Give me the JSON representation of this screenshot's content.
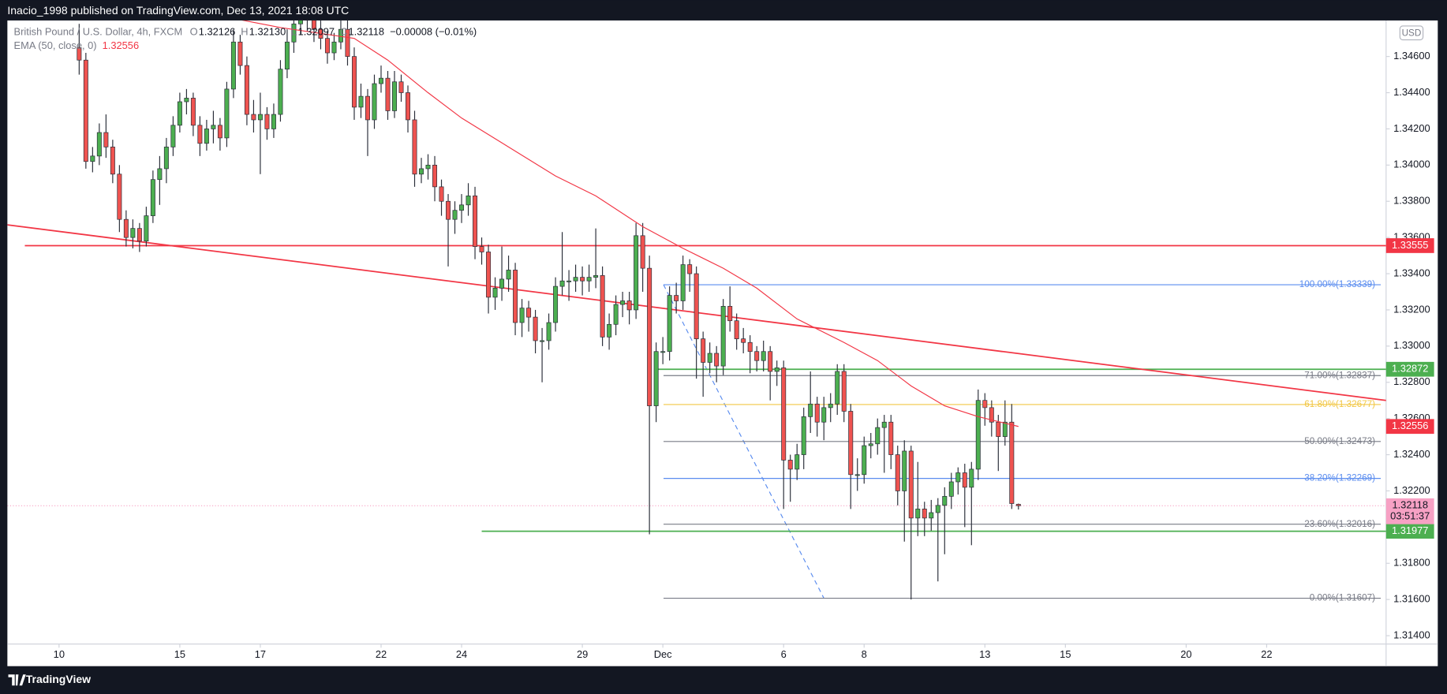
{
  "header": {
    "byline": "Inacio_1998 published on TradingView.com, Dec 13, 2021 18:08 UTC",
    "brand": "TradingView",
    "currency": "USD"
  },
  "chart_data": {
    "type": "candlestick",
    "up_color": "#4caf50",
    "down_color": "#ef5350",
    "legend": {
      "symbol": "British Pound / U.S. Dollar, 4h, FXCM",
      "items": [
        {
          "key": "O",
          "label": "1.32126"
        },
        {
          "key": "H",
          "label": "1.32130"
        },
        {
          "key": "L",
          "label": "1.32097"
        },
        {
          "key": "C",
          "label": "1.32118"
        }
      ],
      "change": "−0.00008 (−0.01%)"
    },
    "xlim": [
      -7.7,
      197.8
    ],
    "xticks": [
      {
        "value": 0,
        "label": "10"
      },
      {
        "value": 18,
        "label": "15"
      },
      {
        "value": 30,
        "label": "17"
      },
      {
        "value": 48,
        "label": "22"
      },
      {
        "value": 60,
        "label": "24"
      },
      {
        "value": 78,
        "label": "29"
      },
      {
        "value": 90,
        "label": "Dec"
      },
      {
        "value": 108,
        "label": "6"
      },
      {
        "value": 120,
        "label": "8"
      },
      {
        "value": 138,
        "label": "13"
      },
      {
        "value": 150,
        "label": "15"
      },
      {
        "value": 168,
        "label": "20"
      },
      {
        "value": 180,
        "label": "22"
      }
    ],
    "ylim": [
      1.31354,
      1.34799
    ],
    "yticks": [
      {
        "value": 1.314,
        "label": "1.31400"
      },
      {
        "value": 1.316,
        "label": "1.31600"
      },
      {
        "value": 1.318,
        "label": "1.31800"
      },
      {
        "value": 1.32,
        "label": "1.32000"
      },
      {
        "value": 1.322,
        "label": "1.32200"
      },
      {
        "value": 1.324,
        "label": "1.32400"
      },
      {
        "value": 1.326,
        "label": "1.32600"
      },
      {
        "value": 1.328,
        "label": "1.32800"
      },
      {
        "value": 1.33,
        "label": "1.33000"
      },
      {
        "value": 1.332,
        "label": "1.33200"
      },
      {
        "value": 1.334,
        "label": "1.33400"
      },
      {
        "value": 1.336,
        "label": "1.33600"
      },
      {
        "value": 1.338,
        "label": "1.33800"
      },
      {
        "value": 1.34,
        "label": "1.34000"
      },
      {
        "value": 1.342,
        "label": "1.34200"
      },
      {
        "value": 1.344,
        "label": "1.34400"
      },
      {
        "value": 1.346,
        "label": "1.34600"
      }
    ],
    "x": [
      3,
      4,
      5,
      6,
      7,
      8,
      9,
      10,
      11,
      12,
      13,
      14,
      15,
      16,
      17,
      18,
      19,
      20,
      21,
      22,
      23,
      24,
      25,
      26,
      27,
      28,
      29,
      30,
      31,
      32,
      33,
      34,
      35,
      36,
      37,
      38,
      39,
      40,
      41,
      42,
      43,
      44,
      45,
      46,
      47,
      48,
      49,
      50,
      51,
      52,
      53,
      54,
      55,
      56,
      57,
      58,
      59,
      60,
      61,
      62,
      63,
      64,
      65,
      66,
      67,
      68,
      69,
      70,
      71,
      72,
      73,
      74,
      75,
      76,
      77,
      78,
      79,
      80,
      81,
      82,
      83,
      84,
      85,
      86,
      87,
      88,
      89,
      90,
      91,
      92,
      93,
      94,
      95,
      96,
      97,
      98,
      99,
      100,
      101,
      102,
      103,
      104,
      105,
      106,
      107,
      108,
      109,
      110,
      111,
      112,
      113,
      114,
      115,
      116,
      117,
      118,
      119,
      120,
      121,
      122,
      123,
      124,
      125,
      126,
      127,
      128,
      129,
      130,
      131,
      132,
      133,
      134,
      135,
      136,
      137,
      138,
      139,
      140,
      141,
      142,
      143
    ],
    "ohlc": [
      [
        1.3465,
        1.3478,
        1.345,
        1.3458
      ],
      [
        1.3458,
        1.3462,
        1.3398,
        1.3402
      ],
      [
        1.3402,
        1.341,
        1.3396,
        1.3405
      ],
      [
        1.3405,
        1.3423,
        1.34,
        1.3418
      ],
      [
        1.3418,
        1.3428,
        1.3404,
        1.341
      ],
      [
        1.341,
        1.3414,
        1.339,
        1.3395
      ],
      [
        1.3395,
        1.34,
        1.3363,
        1.337
      ],
      [
        1.337,
        1.3375,
        1.3355,
        1.336
      ],
      [
        1.336,
        1.337,
        1.3354,
        1.3365
      ],
      [
        1.3365,
        1.3368,
        1.3352,
        1.3358
      ],
      [
        1.3358,
        1.3377,
        1.3355,
        1.3372
      ],
      [
        1.3372,
        1.3397,
        1.3368,
        1.3392
      ],
      [
        1.3392,
        1.3405,
        1.3378,
        1.3398
      ],
      [
        1.3398,
        1.3415,
        1.339,
        1.341
      ],
      [
        1.341,
        1.3427,
        1.3405,
        1.3422
      ],
      [
        1.3422,
        1.344,
        1.3418,
        1.3435
      ],
      [
        1.3435,
        1.3442,
        1.3428,
        1.3437
      ],
      [
        1.3437,
        1.344,
        1.3416,
        1.3422
      ],
      [
        1.3422,
        1.3427,
        1.3405,
        1.3412
      ],
      [
        1.3412,
        1.3425,
        1.3408,
        1.342
      ],
      [
        1.342,
        1.343,
        1.3412,
        1.3422
      ],
      [
        1.3422,
        1.3426,
        1.3408,
        1.3415
      ],
      [
        1.3415,
        1.3446,
        1.341,
        1.3442
      ],
      [
        1.3442,
        1.3475,
        1.3437,
        1.3468
      ],
      [
        1.3468,
        1.3472,
        1.345,
        1.3455
      ],
      [
        1.3455,
        1.346,
        1.3422,
        1.3428
      ],
      [
        1.3428,
        1.3436,
        1.3418,
        1.3425
      ],
      [
        1.3425,
        1.344,
        1.3395,
        1.3428
      ],
      [
        1.3428,
        1.3432,
        1.3414,
        1.342
      ],
      [
        1.342,
        1.3434,
        1.3415,
        1.3428
      ],
      [
        1.3428,
        1.3458,
        1.3424,
        1.3453
      ],
      [
        1.3453,
        1.3475,
        1.3448,
        1.3468
      ],
      [
        1.3468,
        1.3485,
        1.3462,
        1.3478
      ],
      [
        1.3478,
        1.349,
        1.3472,
        1.3482
      ],
      [
        1.3482,
        1.3488,
        1.3474,
        1.348
      ],
      [
        1.348,
        1.3485,
        1.3468,
        1.3475
      ],
      [
        1.3475,
        1.348,
        1.3464,
        1.347
      ],
      [
        1.347,
        1.3474,
        1.3456,
        1.3462
      ],
      [
        1.3462,
        1.3473,
        1.3458,
        1.3468
      ],
      [
        1.3468,
        1.348,
        1.3464,
        1.3475
      ],
      [
        1.3475,
        1.348,
        1.3455,
        1.346
      ],
      [
        1.346,
        1.3465,
        1.3425,
        1.3432
      ],
      [
        1.3432,
        1.3445,
        1.3426,
        1.3438
      ],
      [
        1.3438,
        1.3442,
        1.3405,
        1.3425
      ],
      [
        1.3425,
        1.345,
        1.342,
        1.3445
      ],
      [
        1.3445,
        1.3455,
        1.344,
        1.3448
      ],
      [
        1.3448,
        1.3452,
        1.3425,
        1.343
      ],
      [
        1.343,
        1.3452,
        1.3426,
        1.3446
      ],
      [
        1.3446,
        1.345,
        1.3435,
        1.344
      ],
      [
        1.344,
        1.3444,
        1.3418,
        1.3425
      ],
      [
        1.3425,
        1.343,
        1.3388,
        1.3395
      ],
      [
        1.3395,
        1.3404,
        1.339,
        1.3398
      ],
      [
        1.3398,
        1.3406,
        1.3392,
        1.34
      ],
      [
        1.34,
        1.3405,
        1.338,
        1.3388
      ],
      [
        1.3388,
        1.3392,
        1.3372,
        1.338
      ],
      [
        1.338,
        1.3384,
        1.3344,
        1.337
      ],
      [
        1.337,
        1.338,
        1.3362,
        1.3375
      ],
      [
        1.3375,
        1.3384,
        1.3368,
        1.3378
      ],
      [
        1.3378,
        1.339,
        1.3372,
        1.3383
      ],
      [
        1.3383,
        1.3388,
        1.3348,
        1.3355
      ],
      [
        1.3355,
        1.336,
        1.3345,
        1.3352
      ],
      [
        1.3352,
        1.3356,
        1.3318,
        1.3327
      ],
      [
        1.3327,
        1.3338,
        1.332,
        1.3332
      ],
      [
        1.3332,
        1.3355,
        1.3325,
        1.3337
      ],
      [
        1.3337,
        1.335,
        1.333,
        1.3342
      ],
      [
        1.3342,
        1.3346,
        1.3306,
        1.3313
      ],
      [
        1.3313,
        1.3326,
        1.3305,
        1.3321
      ],
      [
        1.3321,
        1.3325,
        1.3308,
        1.3316
      ],
      [
        1.3316,
        1.332,
        1.3296,
        1.3303
      ],
      [
        1.3303,
        1.331,
        1.328,
        1.3303
      ],
      [
        1.3303,
        1.3318,
        1.3298,
        1.3313
      ],
      [
        1.3313,
        1.3338,
        1.3308,
        1.3333
      ],
      [
        1.3333,
        1.3363,
        1.3328,
        1.3336
      ],
      [
        1.3336,
        1.3342,
        1.3325,
        1.3336
      ],
      [
        1.3336,
        1.3345,
        1.333,
        1.3338
      ],
      [
        1.3338,
        1.3344,
        1.3328,
        1.3336
      ],
      [
        1.3336,
        1.3345,
        1.333,
        1.3338
      ],
      [
        1.3338,
        1.3365,
        1.3332,
        1.3339
      ],
      [
        1.3339,
        1.3344,
        1.33,
        1.3305
      ],
      [
        1.3305,
        1.3318,
        1.3298,
        1.3312
      ],
      [
        1.3312,
        1.3328,
        1.3306,
        1.3323
      ],
      [
        1.3323,
        1.333,
        1.3316,
        1.3325
      ],
      [
        1.3325,
        1.333,
        1.3312,
        1.332
      ],
      [
        1.332,
        1.3368,
        1.3315,
        1.3361
      ],
      [
        1.3361,
        1.3368,
        1.333,
        1.3343
      ],
      [
        1.3343,
        1.335,
        1.3196,
        1.3267
      ],
      [
        1.3267,
        1.3302,
        1.3258,
        1.3297
      ],
      [
        1.3297,
        1.3305,
        1.329,
        1.3297
      ],
      [
        1.3297,
        1.3333,
        1.3292,
        1.3328
      ],
      [
        1.3328,
        1.3335,
        1.3318,
        1.3325
      ],
      [
        1.3325,
        1.335,
        1.332,
        1.3345
      ],
      [
        1.3345,
        1.3348,
        1.333,
        1.334
      ],
      [
        1.334,
        1.3344,
        1.3282,
        1.3304
      ],
      [
        1.3304,
        1.3308,
        1.3272,
        1.3291
      ],
      [
        1.3291,
        1.3302,
        1.3285,
        1.3296
      ],
      [
        1.3296,
        1.33,
        1.328,
        1.3289
      ],
      [
        1.3289,
        1.3326,
        1.3284,
        1.3322
      ],
      [
        1.3322,
        1.3333,
        1.3308,
        1.3314
      ],
      [
        1.3314,
        1.3318,
        1.3298,
        1.3304
      ],
      [
        1.3304,
        1.331,
        1.3296,
        1.3302
      ],
      [
        1.3302,
        1.3306,
        1.3285,
        1.3297
      ],
      [
        1.3297,
        1.33,
        1.3286,
        1.3292
      ],
      [
        1.3292,
        1.3303,
        1.3286,
        1.3297
      ],
      [
        1.3297,
        1.33,
        1.327,
        1.3286
      ],
      [
        1.3286,
        1.3292,
        1.3278,
        1.3288
      ],
      [
        1.3288,
        1.3292,
        1.321,
        1.3237
      ],
      [
        1.3237,
        1.324,
        1.3214,
        1.3232
      ],
      [
        1.3232,
        1.3246,
        1.3226,
        1.324
      ],
      [
        1.324,
        1.3266,
        1.3232,
        1.3261
      ],
      [
        1.3261,
        1.3286,
        1.3252,
        1.3268
      ],
      [
        1.3268,
        1.3272,
        1.325,
        1.3258
      ],
      [
        1.3258,
        1.3272,
        1.3248,
        1.3266
      ],
      [
        1.3266,
        1.3274,
        1.3258,
        1.3268
      ],
      [
        1.3268,
        1.329,
        1.3262,
        1.3286
      ],
      [
        1.3286,
        1.329,
        1.3258,
        1.3264
      ],
      [
        1.3264,
        1.3268,
        1.321,
        1.3229
      ],
      [
        1.3229,
        1.3238,
        1.322,
        1.3229
      ],
      [
        1.3229,
        1.325,
        1.3224,
        1.3245
      ],
      [
        1.3245,
        1.3252,
        1.3238,
        1.3246
      ],
      [
        1.3246,
        1.326,
        1.324,
        1.3255
      ],
      [
        1.3255,
        1.3262,
        1.323,
        1.3258
      ],
      [
        1.3258,
        1.3262,
        1.3232,
        1.324
      ],
      [
        1.324,
        1.3245,
        1.3212,
        1.322
      ],
      [
        1.322,
        1.3248,
        1.3192,
        1.3242
      ],
      [
        1.3242,
        1.3245,
        1.316,
        1.3205
      ],
      [
        1.3205,
        1.3236,
        1.3195,
        1.321
      ],
      [
        1.321,
        1.3214,
        1.3195,
        1.3205
      ],
      [
        1.3205,
        1.3215,
        1.3198,
        1.3208
      ],
      [
        1.3208,
        1.3216,
        1.317,
        1.3212
      ],
      [
        1.3212,
        1.3222,
        1.3185,
        1.3217
      ],
      [
        1.3217,
        1.323,
        1.321,
        1.3225
      ],
      [
        1.3225,
        1.3233,
        1.3218,
        1.323
      ],
      [
        1.323,
        1.3235,
        1.32,
        1.3222
      ],
      [
        1.3222,
        1.3236,
        1.319,
        1.3232
      ],
      [
        1.3232,
        1.3276,
        1.3226,
        1.327
      ],
      [
        1.327,
        1.3274,
        1.3256,
        1.3266
      ],
      [
        1.3266,
        1.327,
        1.325,
        1.3258
      ],
      [
        1.3258,
        1.3262,
        1.3231,
        1.325
      ],
      [
        1.325,
        1.327,
        1.3245,
        1.3258
      ],
      [
        1.3258,
        1.3268,
        1.321,
        1.3213
      ],
      [
        1.32126,
        1.3213,
        1.32097,
        1.32118
      ]
    ],
    "ema": {
      "name": "EMA (50, close, 0)",
      "label": "1.32556",
      "color": "#f23645",
      "x": [
        26,
        33,
        44,
        49,
        55,
        60,
        67,
        74,
        80,
        87,
        93,
        99,
        104,
        110,
        117,
        122,
        127,
        132,
        137,
        143
      ],
      "values": [
        1.3481,
        1.3476,
        1.347,
        1.3458,
        1.344,
        1.3426,
        1.341,
        1.3394,
        1.3383,
        1.3366,
        1.3354,
        1.3343,
        1.3332,
        1.3315,
        1.3302,
        1.3292,
        1.3278,
        1.3267,
        1.3261,
        1.32556
      ]
    },
    "trendline": {
      "color": "#f23645",
      "x": [
        -7.7,
        197.8
      ],
      "values": [
        1.3367,
        1.327
      ]
    },
    "hlines": [
      {
        "value": 1.33555,
        "label": "1.33555",
        "color": "#f23645",
        "from": -5.1
      },
      {
        "value": 1.32872,
        "label": "1.32872",
        "color": "#4caf50",
        "from": 89.1
      },
      {
        "value": 1.31977,
        "label": "1.31977",
        "color": "#4caf50",
        "from": 63
      }
    ],
    "last": {
      "value": 1.32118,
      "label": "1.32118",
      "countdown": "03:51:37",
      "color": "#f7a1c4"
    },
    "fib": {
      "x": [
        90.1,
        197
      ],
      "anchor_x": [
        90.1,
        114
      ],
      "anchor": [
        1.33339,
        1.31607
      ],
      "anchor_color": "#5b8def",
      "levels": [
        {
          "value": 1.33339,
          "label": "100.00%(1.33339)",
          "color": "#5b8def"
        },
        {
          "value": 1.32837,
          "label": "71.00%(1.32837)",
          "color": "#787b86"
        },
        {
          "value": 1.32677,
          "label": "61.80%(1.32677)",
          "color": "#f2c744"
        },
        {
          "value": 1.32473,
          "label": "50.00%(1.32473)",
          "color": "#787b86"
        },
        {
          "value": 1.32269,
          "label": "38.20%(1.32269)",
          "color": "#5b8def"
        },
        {
          "value": 1.32016,
          "label": "23.60%(1.32016)",
          "color": "#787b86"
        },
        {
          "value": 1.31607,
          "label": "0.00%(1.31607)",
          "color": "#787b86"
        }
      ]
    }
  }
}
